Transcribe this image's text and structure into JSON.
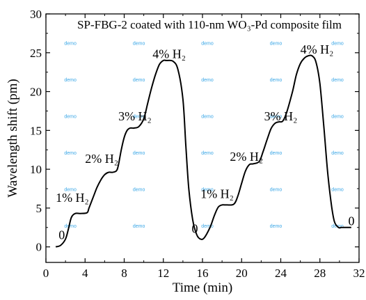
{
  "chart_data": {
    "type": "line",
    "title": "SP-FBG-2 coated with 110-nm WO₃-Pd composite film",
    "xlabel": "Time (min)",
    "ylabel": "Wavelength shift (pm)",
    "xlim": [
      0,
      32
    ],
    "ylim": [
      -2,
      30
    ],
    "xticks": [
      0,
      4,
      8,
      12,
      16,
      20,
      24,
      28,
      32
    ],
    "yticks": [
      0,
      5,
      10,
      15,
      20,
      25,
      30
    ],
    "grid": false,
    "series": [
      {
        "color": "#000000",
        "x": [
          1.0,
          1.5,
          2.0,
          2.3,
          2.6,
          3.0,
          3.5,
          4.2,
          4.4,
          4.8,
          5.2,
          5.6,
          6.0,
          6.4,
          6.8,
          7.2,
          7.4,
          7.7,
          8.0,
          8.3,
          8.6,
          9.0,
          9.5,
          10.0,
          10.4,
          10.8,
          11.2,
          11.6,
          12.0,
          12.3,
          13.0,
          13.5,
          14.0,
          14.3,
          14.6,
          15.0,
          15.4,
          15.8,
          16.2,
          16.8,
          17.2,
          17.6,
          18.0,
          18.5,
          19.2,
          19.6,
          20.0,
          20.4,
          20.8,
          21.2,
          21.8,
          22.2,
          22.6,
          23.0,
          23.4,
          23.8,
          24.2,
          24.6,
          25.2,
          25.6,
          26.0,
          26.4,
          26.8,
          27.2,
          27.6,
          28.0,
          28.4,
          28.8,
          29.2,
          29.5,
          29.9,
          30.2,
          30.6,
          31.2
        ],
        "y": [
          0.0,
          0.2,
          1.0,
          2.3,
          3.8,
          4.3,
          4.3,
          4.4,
          5.0,
          6.3,
          7.6,
          8.6,
          9.3,
          9.6,
          9.6,
          9.8,
          10.5,
          12.5,
          14.1,
          15.0,
          15.3,
          15.3,
          15.5,
          16.5,
          18.5,
          20.5,
          22.2,
          23.5,
          24.0,
          24.0,
          23.9,
          22.8,
          19.0,
          13.0,
          7.5,
          3.5,
          1.6,
          1.0,
          1.2,
          2.6,
          4.0,
          5.1,
          5.4,
          5.4,
          5.5,
          6.5,
          8.2,
          9.8,
          10.6,
          10.7,
          11.0,
          12.3,
          13.8,
          15.2,
          15.9,
          16.1,
          16.2,
          17.3,
          20.0,
          22.2,
          23.6,
          24.3,
          24.6,
          24.6,
          23.8,
          21.0,
          15.5,
          9.5,
          5.2,
          3.2,
          2.5,
          2.5,
          2.5,
          2.5
        ]
      }
    ],
    "annotations": [
      {
        "text": "0",
        "x": 1.3,
        "y": 1.0
      },
      {
        "text": "1% H₂",
        "x": 1.0,
        "y": 5.8
      },
      {
        "text": "2% H₂",
        "x": 4.0,
        "y": 10.8
      },
      {
        "text": "3% H₂",
        "x": 7.4,
        "y": 16.3
      },
      {
        "text": "4% H₂",
        "x": 10.9,
        "y": 24.3
      },
      {
        "text": "0",
        "x": 14.9,
        "y": 1.8
      },
      {
        "text": "1% H₂",
        "x": 15.8,
        "y": 6.3
      },
      {
        "text": "2% H₂",
        "x": 18.8,
        "y": 11.1
      },
      {
        "text": "3% H₂",
        "x": 22.3,
        "y": 16.3
      },
      {
        "text": "4% H₂",
        "x": 26.0,
        "y": 24.9
      },
      {
        "text": "0",
        "x": 30.9,
        "y": 2.8
      }
    ],
    "watermark": "demo"
  }
}
